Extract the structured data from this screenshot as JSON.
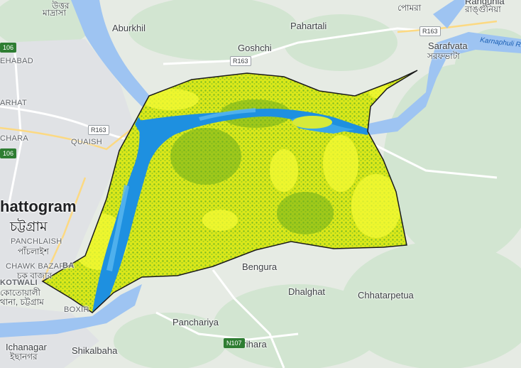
{
  "map": {
    "places": [
      {
        "id": "uttar",
        "text": "উত্তর"
      },
      {
        "id": "madrasa",
        "text": "মাদ্রাসা"
      },
      {
        "id": "aburkhil",
        "text": "Aburkhil"
      },
      {
        "id": "pahartali",
        "text": "Pahartali"
      },
      {
        "id": "pomra",
        "text": "পোমরা"
      },
      {
        "id": "rangunia",
        "text": "Rangunia"
      },
      {
        "id": "rangunia_bn",
        "text": "রাঙ্গুনিয়া"
      },
      {
        "id": "goshchi",
        "text": "Goshchi"
      },
      {
        "id": "sarafvata",
        "text": "Sarafvata"
      },
      {
        "id": "sarafvata_bn",
        "text": "সরফভাটা"
      },
      {
        "id": "ehabad",
        "text": "EHABAD"
      },
      {
        "id": "arhat",
        "text": "ARHAT"
      },
      {
        "id": "chara",
        "text": "CHARA"
      },
      {
        "id": "quaish",
        "text": "QUAISH"
      },
      {
        "id": "chattogram",
        "text": "hattogram"
      },
      {
        "id": "chattogram_bn",
        "text": "চট্টগ্রাম"
      },
      {
        "id": "panchlaish",
        "text": "PANCHLAISH"
      },
      {
        "id": "panchlaish_bn",
        "text": "পাঁচলাইশ"
      },
      {
        "id": "chawkbazar",
        "text": "CHAWK BAZAR"
      },
      {
        "id": "chawkbazar_bn",
        "text": "চক বাজার"
      },
      {
        "id": "ba",
        "text": "BA"
      },
      {
        "id": "kotwali",
        "text": "KOTWALI"
      },
      {
        "id": "kotwali_bn",
        "text": "কোতোয়ালী"
      },
      {
        "id": "thana_bn",
        "text": "থানা, চট্টগ্রাম"
      },
      {
        "id": "bengura",
        "text": "Bengura"
      },
      {
        "id": "dhalghat",
        "text": "Dhalghat"
      },
      {
        "id": "chhatarpetua",
        "text": "Chhatarpetua"
      },
      {
        "id": "boxir",
        "text": "BOXIR"
      },
      {
        "id": "panchariya",
        "text": "Panchariya"
      },
      {
        "id": "larihara",
        "text": "Larihara"
      },
      {
        "id": "ichanagar",
        "text": "Ichanagar"
      },
      {
        "id": "ichanagar_bn",
        "text": "ইছানগর"
      },
      {
        "id": "shikalbaha",
        "text": "Shikalbaha"
      }
    ],
    "roads": [
      {
        "id": "r163a",
        "text": "R163"
      },
      {
        "id": "r163b",
        "text": "R163"
      },
      {
        "id": "r163c",
        "text": "R163"
      },
      {
        "id": "n107",
        "text": "N107"
      },
      {
        "id": "r106a",
        "text": "106"
      },
      {
        "id": "r106b",
        "text": "106"
      }
    ],
    "river_label": "Karnaphuli Riv",
    "colors": {
      "land": "#e6ebe4",
      "green_patch": "#cfe3cf",
      "water": "#9ec4f2",
      "urban": "#dfe1e5",
      "overlay_yellow": "#e9f21c",
      "overlay_green": "#8dc81f",
      "overlay_water": "#1e90e0",
      "boundary": "#1a1a1a"
    }
  }
}
